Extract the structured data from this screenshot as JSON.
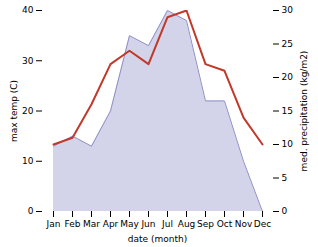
{
  "chart_data": {
    "type": "line",
    "categories": [
      "Jan",
      "Feb",
      "Mar",
      "Apr",
      "May",
      "Jun",
      "Jul",
      "Aug",
      "Sep",
      "Oct",
      "Nov",
      "Dec"
    ],
    "xlabel": "date (month)",
    "ylabel": "max temp (C)",
    "y2label": "med. precipitation (kg/m2)",
    "ylim": [
      0,
      40
    ],
    "yticks": [
      0,
      10,
      20,
      30,
      40
    ],
    "y2lim": [
      0,
      30
    ],
    "y2ticks": [
      0,
      5,
      10,
      15,
      20,
      25,
      30
    ],
    "grid": false,
    "series": [
      {
        "name": "max temp (C)",
        "type": "area",
        "color": "#9090c8",
        "values": [
          13,
          15,
          13,
          20,
          35,
          33,
          40,
          38,
          22,
          22,
          10,
          0
        ]
      },
      {
        "name": "med. precipitation (kg/m2)",
        "type": "line",
        "axis": "y2",
        "color": "#c0392b",
        "values": [
          10,
          11,
          16,
          22,
          24,
          22,
          29,
          30,
          22,
          21,
          14,
          10
        ]
      }
    ]
  }
}
